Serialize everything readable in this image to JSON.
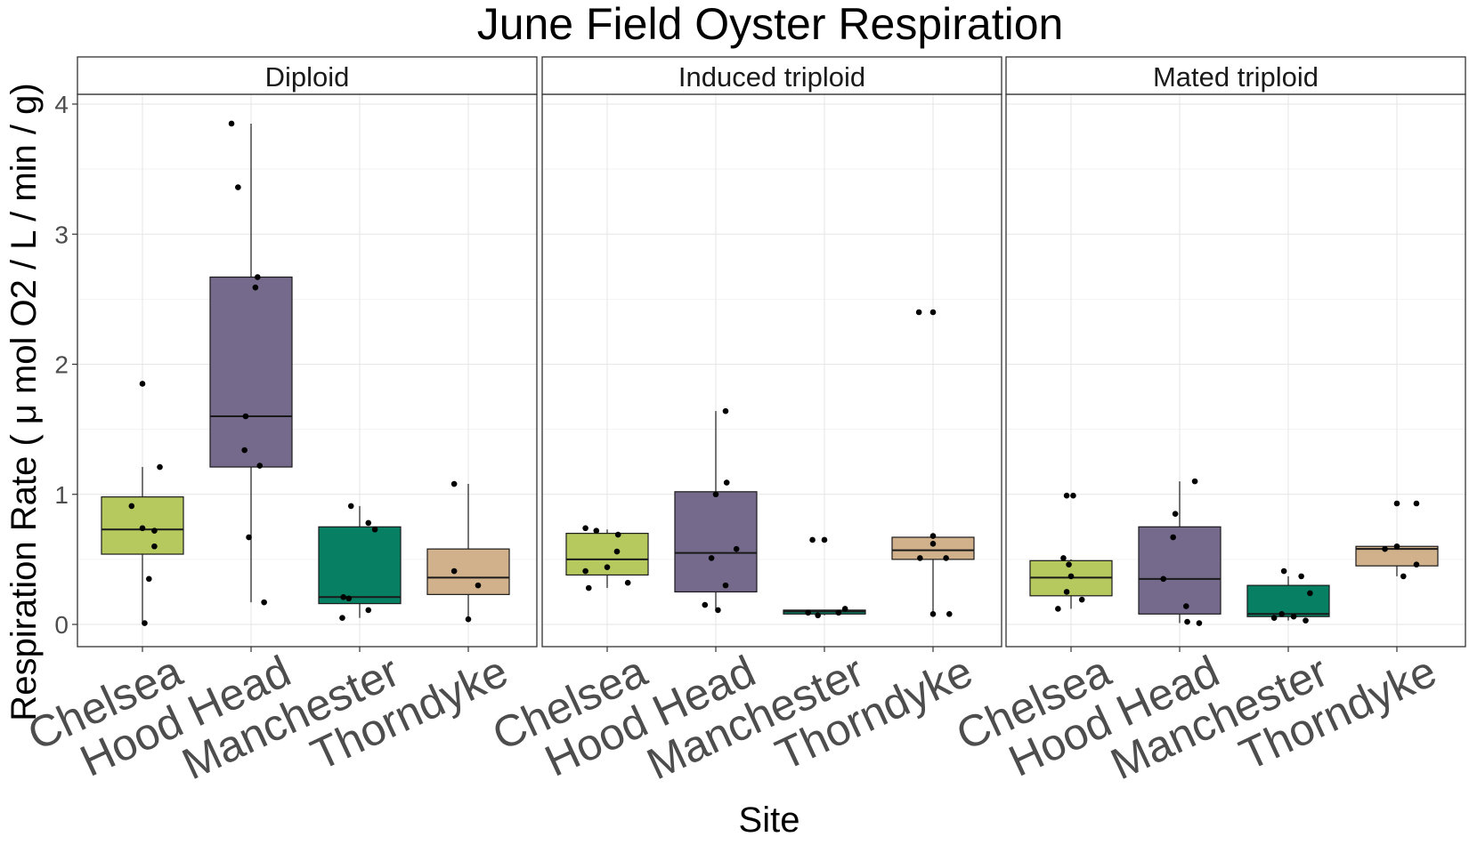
{
  "chart_data": {
    "type": "box",
    "title": "June Field Oyster Respiration",
    "xlabel": "Site",
    "ylabel": "Respiration Rate ( μ mol O2 / L / min / g)",
    "ylim": [
      -0.18,
      4.32
    ],
    "yticks": [
      "0",
      "1",
      "2",
      "3",
      "4"
    ],
    "categories": [
      "Chelsea",
      "Hood Head",
      "Manchester",
      "Thorndyke"
    ],
    "colors": {
      "Chelsea": "#b5c95e",
      "Hood Head": "#756a8c",
      "Manchester": "#077f63",
      "Thorndyke": "#d1b18c"
    },
    "grid": true,
    "facets": [
      {
        "label": "Diploid",
        "boxes": [
          {
            "site": "Chelsea",
            "min": 0.02,
            "q1": 0.54,
            "median": 0.73,
            "q3": 0.98,
            "max": 1.21,
            "points": [
              {
                "x": -0.1,
                "y": 0.91
              },
              {
                "x": 0.0,
                "y": 0.74
              },
              {
                "x": 0.11,
                "y": 0.72
              },
              {
                "x": 0.11,
                "y": 0.6
              },
              {
                "x": 0.06,
                "y": 0.35
              },
              {
                "x": 0.02,
                "y": 0.01
              },
              {
                "x": 0.16,
                "y": 1.21
              },
              {
                "x": 0.0,
                "y": 1.85
              }
            ]
          },
          {
            "site": "Hood Head",
            "min": 0.17,
            "q1": 1.21,
            "median": 1.6,
            "q3": 2.67,
            "max": 3.85,
            "points": [
              {
                "x": -0.18,
                "y": 3.85
              },
              {
                "x": -0.12,
                "y": 3.36
              },
              {
                "x": 0.06,
                "y": 2.67
              },
              {
                "x": 0.04,
                "y": 2.59
              },
              {
                "x": -0.05,
                "y": 1.6
              },
              {
                "x": -0.06,
                "y": 1.34
              },
              {
                "x": 0.08,
                "y": 1.22
              },
              {
                "x": -0.02,
                "y": 0.67
              },
              {
                "x": 0.12,
                "y": 0.17
              }
            ]
          },
          {
            "site": "Manchester",
            "min": 0.05,
            "q1": 0.16,
            "median": 0.21,
            "q3": 0.75,
            "max": 0.91,
            "points": [
              {
                "x": -0.08,
                "y": 0.91
              },
              {
                "x": 0.08,
                "y": 0.78
              },
              {
                "x": 0.14,
                "y": 0.73
              },
              {
                "x": -0.15,
                "y": 0.21
              },
              {
                "x": -0.1,
                "y": 0.2
              },
              {
                "x": 0.08,
                "y": 0.11
              },
              {
                "x": -0.16,
                "y": 0.05
              }
            ]
          },
          {
            "site": "Thorndyke",
            "min": 0.04,
            "q1": 0.23,
            "median": 0.36,
            "q3": 0.58,
            "max": 1.08,
            "points": [
              {
                "x": -0.13,
                "y": 1.08
              },
              {
                "x": -0.13,
                "y": 0.41
              },
              {
                "x": 0.09,
                "y": 0.3
              },
              {
                "x": 0.0,
                "y": 0.04
              }
            ]
          }
        ]
      },
      {
        "label": "Induced triploid",
        "boxes": [
          {
            "site": "Chelsea",
            "min": 0.28,
            "q1": 0.38,
            "median": 0.5,
            "q3": 0.7,
            "max": 0.73,
            "points": [
              {
                "x": -0.2,
                "y": 0.74
              },
              {
                "x": -0.1,
                "y": 0.72
              },
              {
                "x": 0.1,
                "y": 0.69
              },
              {
                "x": 0.09,
                "y": 0.56
              },
              {
                "x": -0.2,
                "y": 0.41
              },
              {
                "x": 0.0,
                "y": 0.44
              },
              {
                "x": 0.19,
                "y": 0.32
              },
              {
                "x": -0.17,
                "y": 0.28
              }
            ]
          },
          {
            "site": "Hood Head",
            "min": 0.11,
            "q1": 0.25,
            "median": 0.55,
            "q3": 1.02,
            "max": 1.64,
            "points": [
              {
                "x": 0.09,
                "y": 1.64
              },
              {
                "x": 0.1,
                "y": 1.09
              },
              {
                "x": 0.0,
                "y": 1.0
              },
              {
                "x": 0.19,
                "y": 0.58
              },
              {
                "x": -0.04,
                "y": 0.51
              },
              {
                "x": 0.09,
                "y": 0.3
              },
              {
                "x": -0.1,
                "y": 0.15
              },
              {
                "x": 0.02,
                "y": 0.11
              }
            ]
          },
          {
            "site": "Manchester",
            "min": 0.07,
            "q1": 0.08,
            "median": 0.1,
            "q3": 0.11,
            "max": 0.11,
            "points": [
              {
                "x": -0.11,
                "y": 0.65
              },
              {
                "x": 0.0,
                "y": 0.65
              },
              {
                "x": -0.15,
                "y": 0.09
              },
              {
                "x": -0.06,
                "y": 0.07
              },
              {
                "x": 0.13,
                "y": 0.09
              },
              {
                "x": 0.19,
                "y": 0.12
              }
            ]
          },
          {
            "site": "Thorndyke",
            "min": 0.07,
            "q1": 0.5,
            "median": 0.57,
            "q3": 0.67,
            "max": 0.67,
            "points": [
              {
                "x": -0.13,
                "y": 2.4
              },
              {
                "x": 0.0,
                "y": 2.4
              },
              {
                "x": 0.0,
                "y": 0.68
              },
              {
                "x": 0.0,
                "y": 0.62
              },
              {
                "x": -0.12,
                "y": 0.51
              },
              {
                "x": 0.12,
                "y": 0.51
              },
              {
                "x": 0.0,
                "y": 0.08
              },
              {
                "x": 0.15,
                "y": 0.08
              }
            ]
          }
        ]
      },
      {
        "label": "Mated triploid",
        "boxes": [
          {
            "site": "Chelsea",
            "min": 0.12,
            "q1": 0.22,
            "median": 0.36,
            "q3": 0.49,
            "max": 0.5,
            "points": [
              {
                "x": -0.04,
                "y": 0.99
              },
              {
                "x": 0.02,
                "y": 0.99
              },
              {
                "x": -0.07,
                "y": 0.51
              },
              {
                "x": -0.02,
                "y": 0.46
              },
              {
                "x": 0.0,
                "y": 0.37
              },
              {
                "x": -0.04,
                "y": 0.25
              },
              {
                "x": 0.1,
                "y": 0.19
              },
              {
                "x": -0.12,
                "y": 0.12
              }
            ]
          },
          {
            "site": "Hood Head",
            "min": 0.01,
            "q1": 0.08,
            "median": 0.35,
            "q3": 0.75,
            "max": 1.1,
            "points": [
              {
                "x": 0.14,
                "y": 1.1
              },
              {
                "x": -0.04,
                "y": 0.85
              },
              {
                "x": -0.06,
                "y": 0.67
              },
              {
                "x": -0.15,
                "y": 0.35
              },
              {
                "x": 0.06,
                "y": 0.14
              },
              {
                "x": 0.07,
                "y": 0.02
              },
              {
                "x": 0.18,
                "y": 0.01
              }
            ]
          },
          {
            "site": "Manchester",
            "min": 0.03,
            "q1": 0.06,
            "median": 0.08,
            "q3": 0.3,
            "max": 0.37,
            "points": [
              {
                "x": -0.04,
                "y": 0.41
              },
              {
                "x": 0.12,
                "y": 0.37
              },
              {
                "x": 0.2,
                "y": 0.24
              },
              {
                "x": -0.06,
                "y": 0.08
              },
              {
                "x": -0.13,
                "y": 0.05
              },
              {
                "x": 0.05,
                "y": 0.06
              },
              {
                "x": 0.16,
                "y": 0.03
              }
            ]
          },
          {
            "site": "Thorndyke",
            "min": 0.37,
            "q1": 0.45,
            "median": 0.58,
            "q3": 0.6,
            "max": 0.6,
            "points": [
              {
                "x": -0.11,
                "y": 0.58
              },
              {
                "x": 0.0,
                "y": 0.6
              },
              {
                "x": 0.0,
                "y": 0.93
              },
              {
                "x": 0.18,
                "y": 0.93
              },
              {
                "x": 0.06,
                "y": 0.37
              },
              {
                "x": 0.18,
                "y": 0.46
              }
            ]
          }
        ]
      }
    ]
  }
}
